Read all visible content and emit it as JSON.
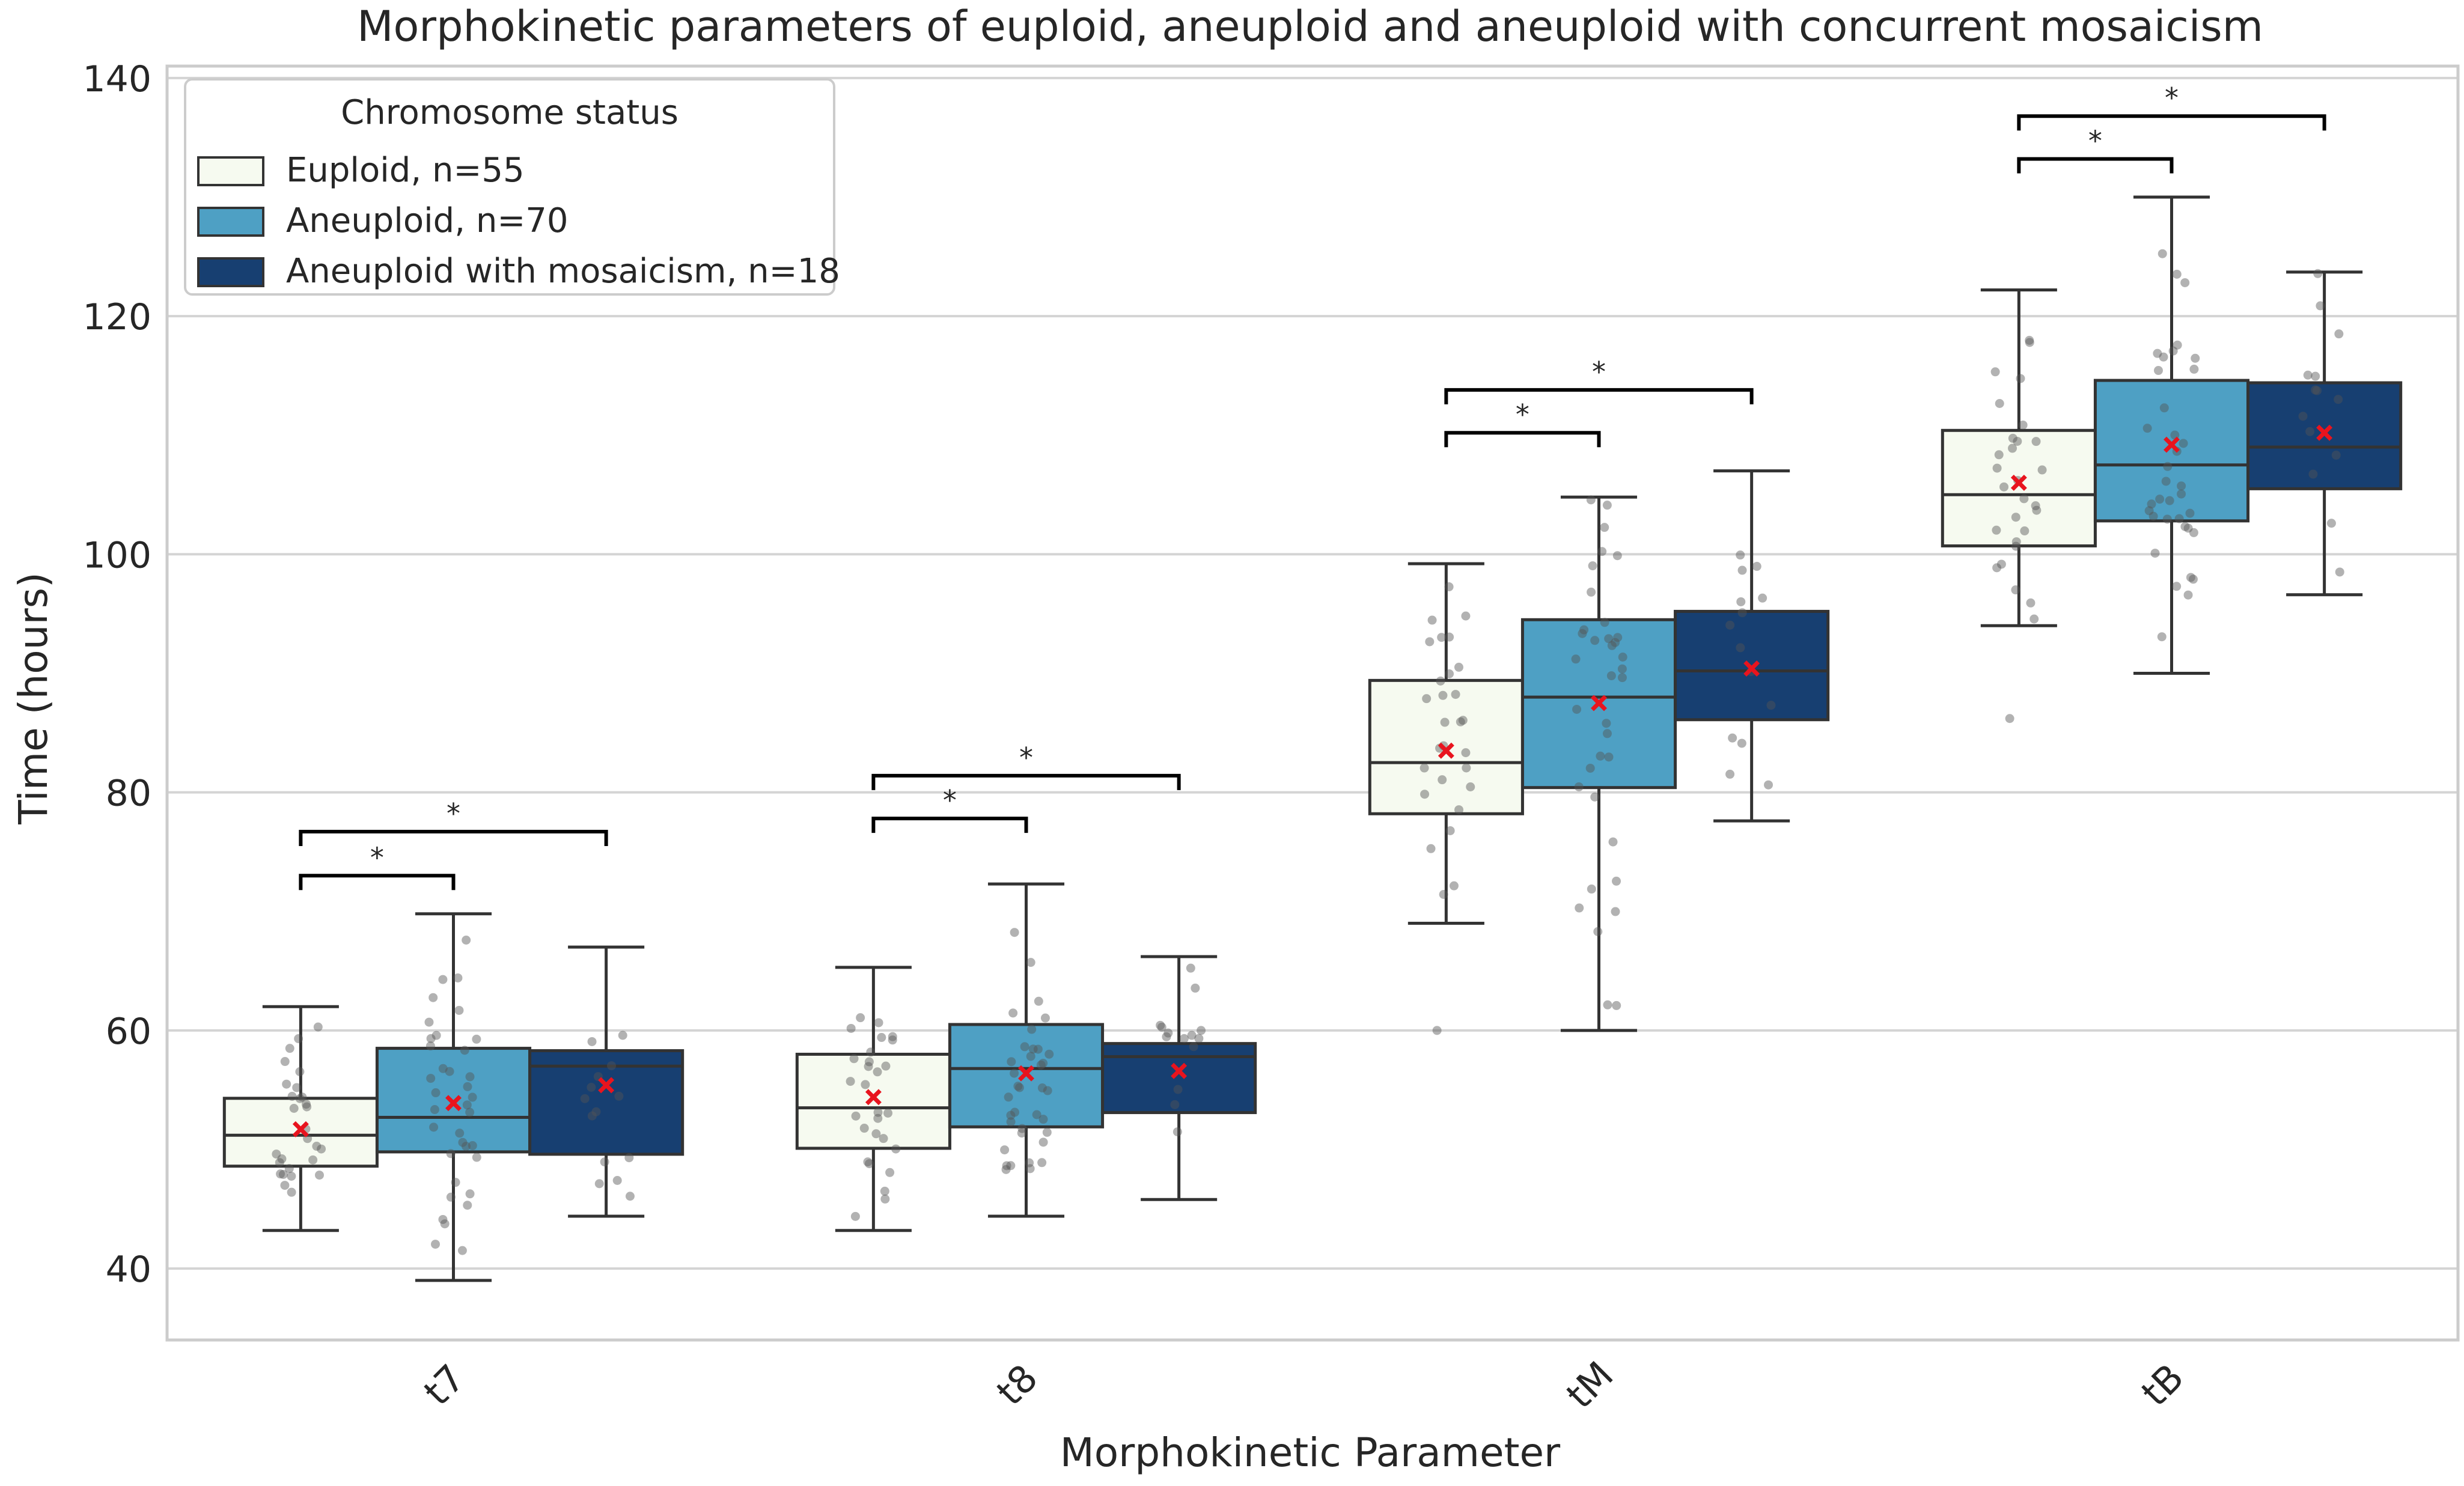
{
  "chart_data": {
    "type": "box",
    "title": "Morphokinetic parameters of euploid, aneuploid and aneuploid with concurrent mosaicism",
    "xlabel": "Morphokinetic Parameter",
    "ylabel": "Time (hours)",
    "ylim": [
      34,
      141
    ],
    "yticks": [
      40,
      60,
      80,
      100,
      120,
      140
    ],
    "grid": "horizontal",
    "categories": [
      "t7",
      "t8",
      "tM",
      "tB"
    ],
    "legend": {
      "title": "Chromosome status",
      "placement": "top-left",
      "entries": [
        "Euploid, n=55",
        "Aneuploid, n=70",
        "Aneuploid with mosaicism, n=18"
      ]
    },
    "series": [
      {
        "name": "Euploid, n=55",
        "color": "#f6faf0",
        "boxes": [
          {
            "whislo": 43.2,
            "q1": 48.6,
            "median": 51.2,
            "q3": 54.3,
            "whishi": 62.0,
            "mean": 51.7,
            "fliers": []
          },
          {
            "whislo": 43.2,
            "q1": 50.1,
            "median": 53.5,
            "q3": 58.0,
            "whishi": 65.3,
            "mean": 54.4,
            "fliers": []
          },
          {
            "whislo": 69.0,
            "q1": 78.2,
            "median": 82.5,
            "q3": 89.4,
            "whishi": 99.2,
            "mean": 83.5,
            "fliers": [
              60.0
            ]
          },
          {
            "whislo": 94.0,
            "q1": 100.7,
            "median": 105.0,
            "q3": 110.4,
            "whishi": 122.2,
            "mean": 106.0,
            "fliers": [
              86.2
            ]
          }
        ]
      },
      {
        "name": "Aneuploid, n=70",
        "color": "#4ea0c4",
        "boxes": [
          {
            "whislo": 39.0,
            "q1": 49.8,
            "median": 52.7,
            "q3": 58.5,
            "whishi": 69.8,
            "mean": 53.9,
            "fliers": []
          },
          {
            "whislo": 44.4,
            "q1": 51.9,
            "median": 56.8,
            "q3": 60.5,
            "whishi": 72.3,
            "mean": 56.4,
            "fliers": []
          },
          {
            "whislo": 60.0,
            "q1": 80.4,
            "median": 88.0,
            "q3": 94.5,
            "whishi": 104.8,
            "mean": 87.5,
            "fliers": []
          },
          {
            "whislo": 90.0,
            "q1": 102.8,
            "median": 107.5,
            "q3": 114.6,
            "whishi": 130.0,
            "mean": 109.2,
            "fliers": []
          }
        ]
      },
      {
        "name": "Aneuploid with mosaicism, n=18",
        "color": "#173f71",
        "boxes": [
          {
            "whislo": 44.4,
            "q1": 49.6,
            "median": 57.0,
            "q3": 58.3,
            "whishi": 67.0,
            "mean": 55.4,
            "fliers": []
          },
          {
            "whislo": 45.8,
            "q1": 53.1,
            "median": 57.8,
            "q3": 58.9,
            "whishi": 66.2,
            "mean": 56.6,
            "fliers": []
          },
          {
            "whislo": 77.6,
            "q1": 86.1,
            "median": 90.2,
            "q3": 95.2,
            "whishi": 107.0,
            "mean": 90.4,
            "fliers": []
          },
          {
            "whislo": 96.6,
            "q1": 105.5,
            "median": 109.0,
            "q3": 114.4,
            "whishi": 123.7,
            "mean": 110.2,
            "fliers": []
          }
        ]
      }
    ],
    "significance_brackets": [
      {
        "category": "t7",
        "from_series": 0,
        "to_series": 1,
        "y": 73.0,
        "label": "*"
      },
      {
        "category": "t7",
        "from_series": 0,
        "to_series": 2,
        "y": 76.7,
        "label": "*"
      },
      {
        "category": "t8",
        "from_series": 0,
        "to_series": 1,
        "y": 77.8,
        "label": "*"
      },
      {
        "category": "t8",
        "from_series": 0,
        "to_series": 2,
        "y": 81.4,
        "label": "*"
      },
      {
        "category": "tM",
        "from_series": 0,
        "to_series": 1,
        "y": 110.2,
        "label": "*"
      },
      {
        "category": "tM",
        "from_series": 0,
        "to_series": 2,
        "y": 113.8,
        "label": "*"
      },
      {
        "category": "tB",
        "from_series": 0,
        "to_series": 1,
        "y": 133.2,
        "label": "*"
      },
      {
        "category": "tB",
        "from_series": 0,
        "to_series": 2,
        "y": 136.8,
        "label": "*"
      }
    ],
    "mean_marker": {
      "symbol": "x",
      "color": "#e8141e"
    }
  }
}
